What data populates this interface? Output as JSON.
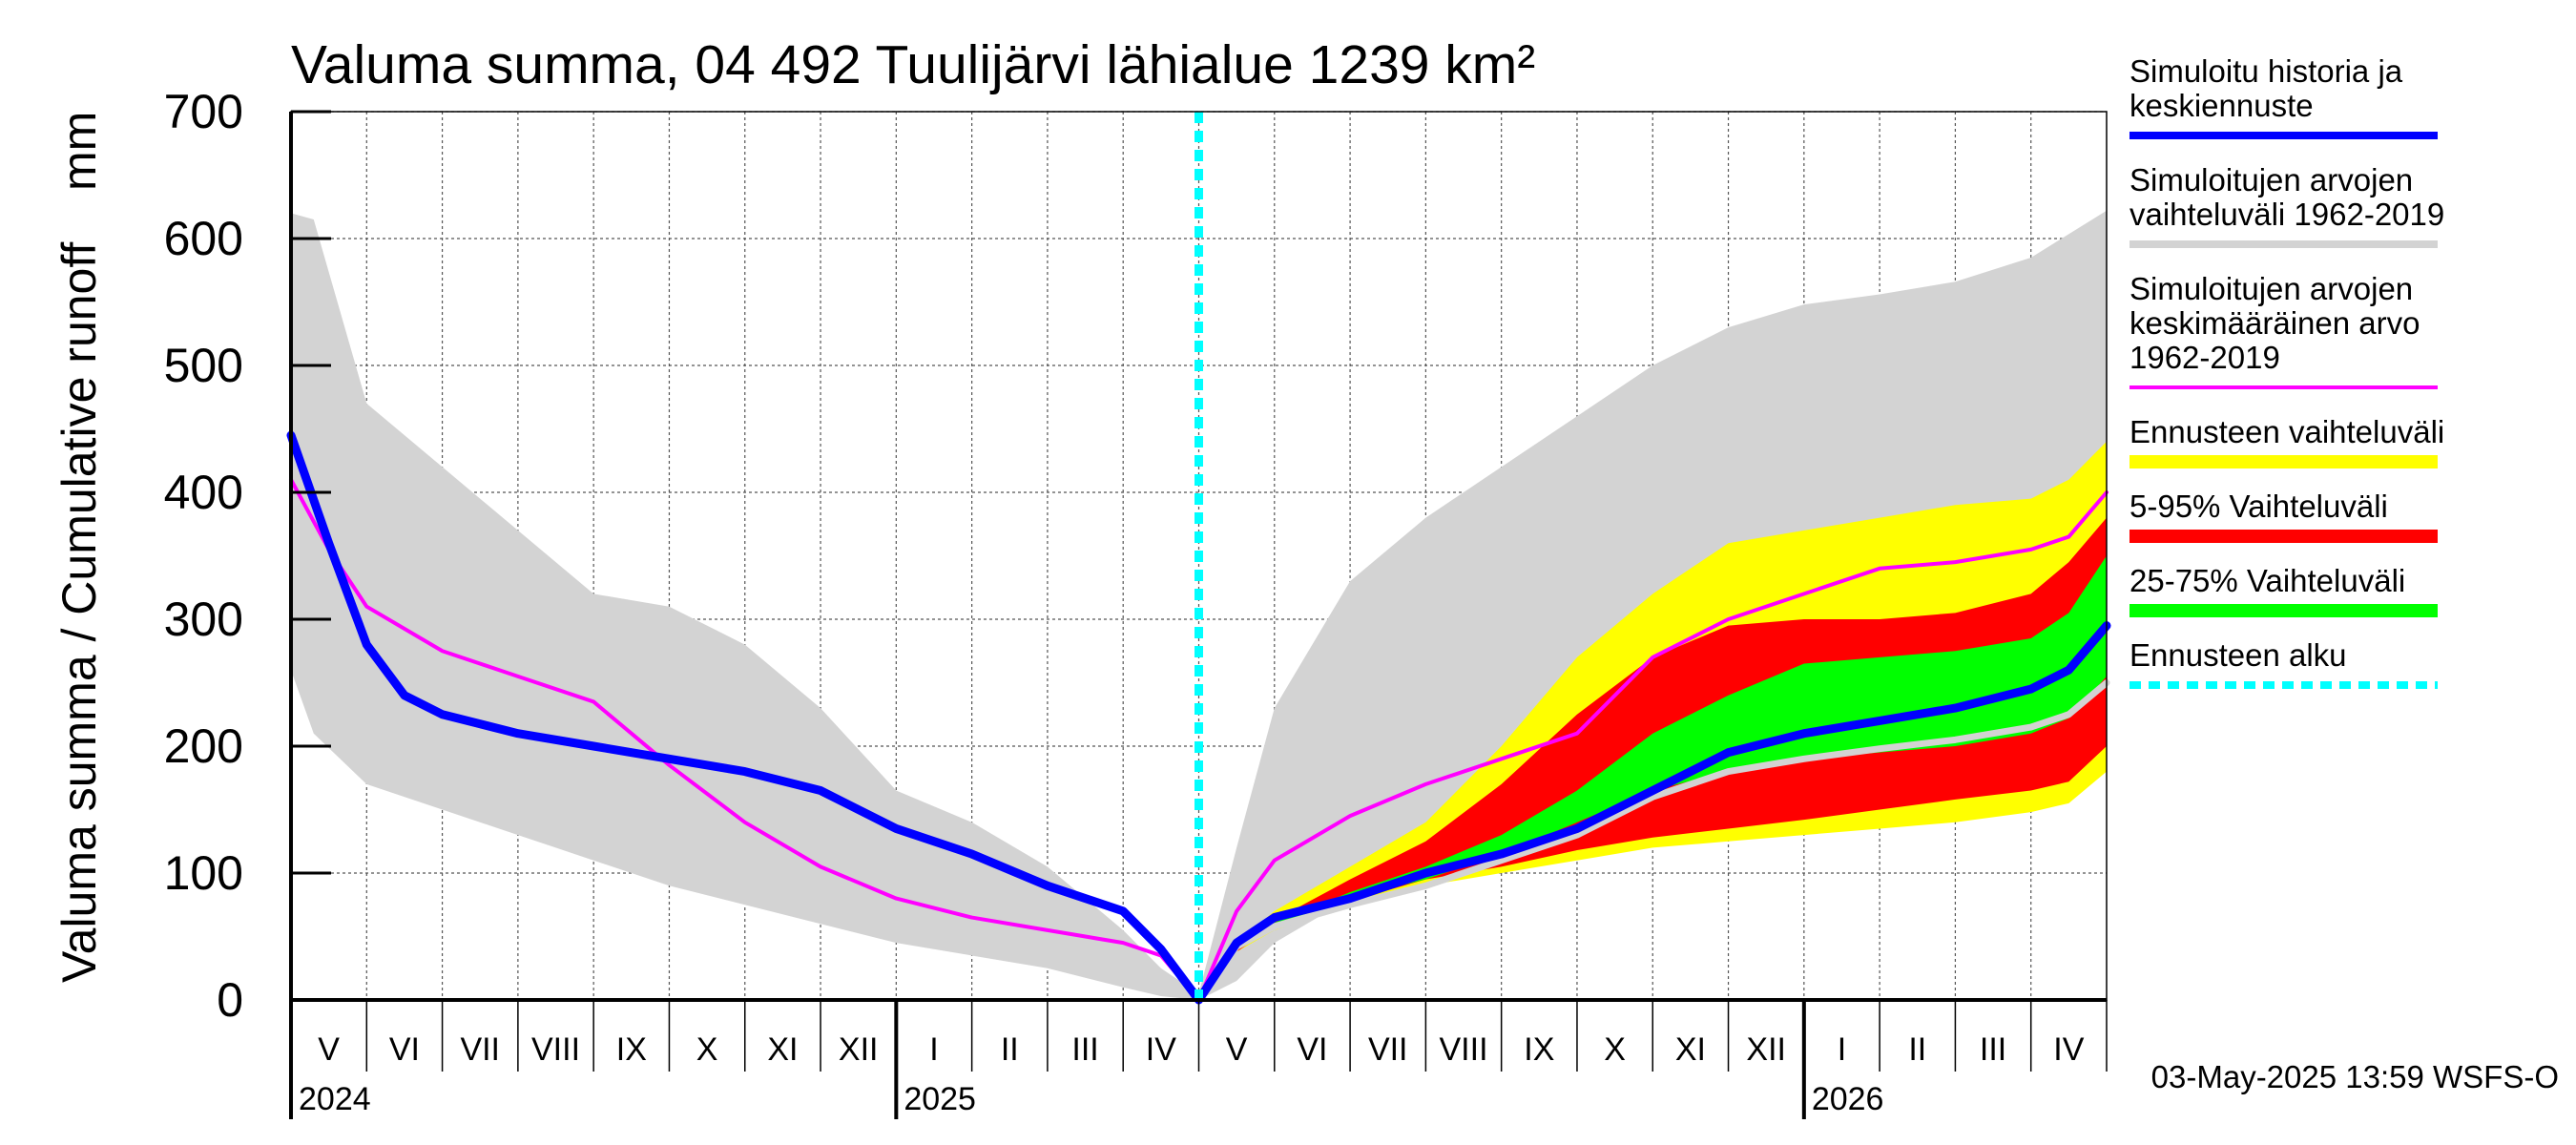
{
  "chart_data": {
    "type": "area",
    "title": "Valuma summa, 04 492 Tuulijärvi lähialue 1239 km²",
    "ylabel_left": "Valuma summa / Cumulative runoff",
    "ylabel_unit": "mm",
    "ylim": [
      0,
      700
    ],
    "yticks": [
      0,
      100,
      200,
      300,
      400,
      500,
      600,
      700
    ],
    "x_unit": "month index (0 = 1 May 2024, 24 = 1 May 2026)",
    "xlim": [
      0,
      24
    ],
    "months": [
      "V",
      "VI",
      "VII",
      "VIII",
      "IX",
      "X",
      "XI",
      "XII",
      "I",
      "II",
      "III",
      "IV",
      "V",
      "VI",
      "VII",
      "VIII",
      "IX",
      "X",
      "XI",
      "XII",
      "I",
      "II",
      "III",
      "IV"
    ],
    "years": [
      {
        "label": "2024",
        "month_index": 0
      },
      {
        "label": "2025",
        "month_index": 8
      },
      {
        "label": "2026",
        "month_index": 20
      }
    ],
    "forecast_start": 12,
    "footer": "03-May-2025 13:59 WSFS-O",
    "series": [
      {
        "name": "Simuloitujen arvojen vaihteluväli 1962-2019",
        "kind": "band",
        "color": "#d3d3d3",
        "x": [
          0,
          0.3,
          1,
          2,
          3,
          4,
          5,
          6,
          7,
          8,
          9,
          10,
          11,
          11.5,
          12,
          12.5,
          13,
          14,
          15,
          16,
          17,
          18,
          19,
          20,
          21,
          22,
          23,
          24
        ],
        "upper": [
          620,
          615,
          470,
          420,
          370,
          320,
          310,
          280,
          230,
          165,
          140,
          105,
          55,
          25,
          5,
          120,
          230,
          330,
          380,
          420,
          460,
          500,
          530,
          548,
          556,
          566,
          585,
          622
        ],
        "lower": [
          260,
          210,
          170,
          150,
          130,
          110,
          90,
          75,
          60,
          45,
          35,
          25,
          10,
          3,
          0,
          15,
          45,
          80,
          100,
          115,
          125,
          135,
          145,
          155,
          162,
          168,
          175,
          185
        ]
      },
      {
        "name": "Ennusteen vaihteluväli",
        "kind": "band",
        "color": "#ffff00",
        "x": [
          12,
          12.5,
          13,
          14,
          15,
          16,
          17,
          18,
          19,
          20,
          21,
          22,
          23,
          23.5,
          24
        ],
        "upper": [
          0,
          45,
          70,
          105,
          140,
          200,
          270,
          320,
          360,
          370,
          380,
          390,
          395,
          410,
          440
        ],
        "lower": [
          0,
          38,
          55,
          75,
          90,
          100,
          110,
          120,
          125,
          130,
          135,
          140,
          148,
          155,
          180
        ]
      },
      {
        "name": "5-95% Vaihteluväli",
        "kind": "band",
        "color": "#ff0000",
        "x": [
          12,
          12.5,
          13,
          14,
          15,
          16,
          17,
          18,
          19,
          20,
          21,
          22,
          23,
          23.5,
          24
        ],
        "upper": [
          0,
          42,
          63,
          95,
          125,
          170,
          225,
          270,
          295,
          300,
          300,
          305,
          320,
          345,
          380
        ],
        "lower": [
          0,
          38,
          58,
          78,
          95,
          105,
          118,
          128,
          135,
          142,
          150,
          158,
          165,
          172,
          200
        ]
      },
      {
        "name": "25-75% Vaihteluväli",
        "kind": "band",
        "color": "#00ff00",
        "x": [
          12,
          12.5,
          13,
          14,
          15,
          16,
          17,
          18,
          19,
          20,
          21,
          22,
          23,
          23.5,
          24
        ],
        "upper": [
          0,
          40,
          61,
          85,
          105,
          130,
          165,
          210,
          240,
          265,
          270,
          275,
          285,
          305,
          350
        ],
        "lower": [
          0,
          39,
          59,
          80,
          95,
          115,
          140,
          165,
          180,
          190,
          195,
          200,
          210,
          222,
          255
        ]
      },
      {
        "name": "Simuloitujen arvojen keskimääräinen arvo 1962-2019",
        "kind": "line",
        "color": "#ff00ff",
        "width": 4,
        "x": [
          0,
          0.5,
          1,
          2,
          3,
          4,
          4.5,
          5,
          6,
          7,
          8,
          9,
          10,
          11,
          11.5,
          12,
          12.5,
          13,
          14,
          15,
          16,
          17,
          18,
          19,
          20,
          21,
          22,
          23,
          23.5,
          24
        ],
        "y": [
          410,
          355,
          310,
          275,
          255,
          235,
          210,
          185,
          140,
          105,
          80,
          65,
          55,
          45,
          35,
          0,
          70,
          110,
          145,
          170,
          190,
          210,
          270,
          300,
          320,
          340,
          345,
          355,
          365,
          400
        ]
      },
      {
        "name": "Ennusteen mediaani",
        "kind": "line",
        "color": "#d3d3d3",
        "width": 7,
        "x": [
          12,
          12.5,
          13,
          14,
          15,
          16,
          17,
          18,
          19,
          20,
          21,
          22,
          23,
          23.5,
          24
        ],
        "y": [
          0,
          42,
          58,
          75,
          90,
          110,
          130,
          160,
          180,
          190,
          198,
          205,
          215,
          225,
          250
        ]
      },
      {
        "name": "Simuloitu historia ja keskiennuste",
        "kind": "line",
        "color": "#0000ff",
        "width": 9,
        "x": [
          0,
          0.5,
          1,
          1.5,
          2,
          3,
          4,
          5,
          6,
          7,
          8,
          9,
          10,
          11,
          11.5,
          12,
          12.5,
          13,
          14,
          15,
          16,
          17,
          18,
          19,
          20,
          21,
          22,
          23,
          23.5,
          24
        ],
        "y": [
          445,
          360,
          280,
          240,
          225,
          210,
          200,
          190,
          180,
          165,
          135,
          115,
          90,
          70,
          40,
          0,
          45,
          65,
          80,
          100,
          115,
          135,
          165,
          195,
          210,
          220,
          230,
          245,
          260,
          295
        ]
      }
    ]
  },
  "legend": [
    {
      "lines": [
        "Simuloitu historia ja",
        "keskiennuste"
      ],
      "color": "#0000ff",
      "style": "solid",
      "thickness": 8
    },
    {
      "lines": [
        "Simuloitujen arvojen",
        "vaihteluväli 1962-2019"
      ],
      "color": "#d3d3d3",
      "style": "solid",
      "thickness": 8
    },
    {
      "lines": [
        "Simuloitujen arvojen",
        "keskimääräinen arvo",
        "   1962-2019"
      ],
      "color": "#ff00ff",
      "style": "solid",
      "thickness": 4
    },
    {
      "lines": [
        "Ennusteen vaihteluväli"
      ],
      "color": "#ffff00",
      "style": "solid",
      "thickness": 14
    },
    {
      "lines": [
        "5-95% Vaihteluväli"
      ],
      "color": "#ff0000",
      "style": "solid",
      "thickness": 14
    },
    {
      "lines": [
        "25-75% Vaihteluväli"
      ],
      "color": "#00ff00",
      "style": "solid",
      "thickness": 14
    },
    {
      "lines": [
        "Ennusteen alku"
      ],
      "color": "#00ffff",
      "style": "dashed",
      "thickness": 8
    }
  ]
}
